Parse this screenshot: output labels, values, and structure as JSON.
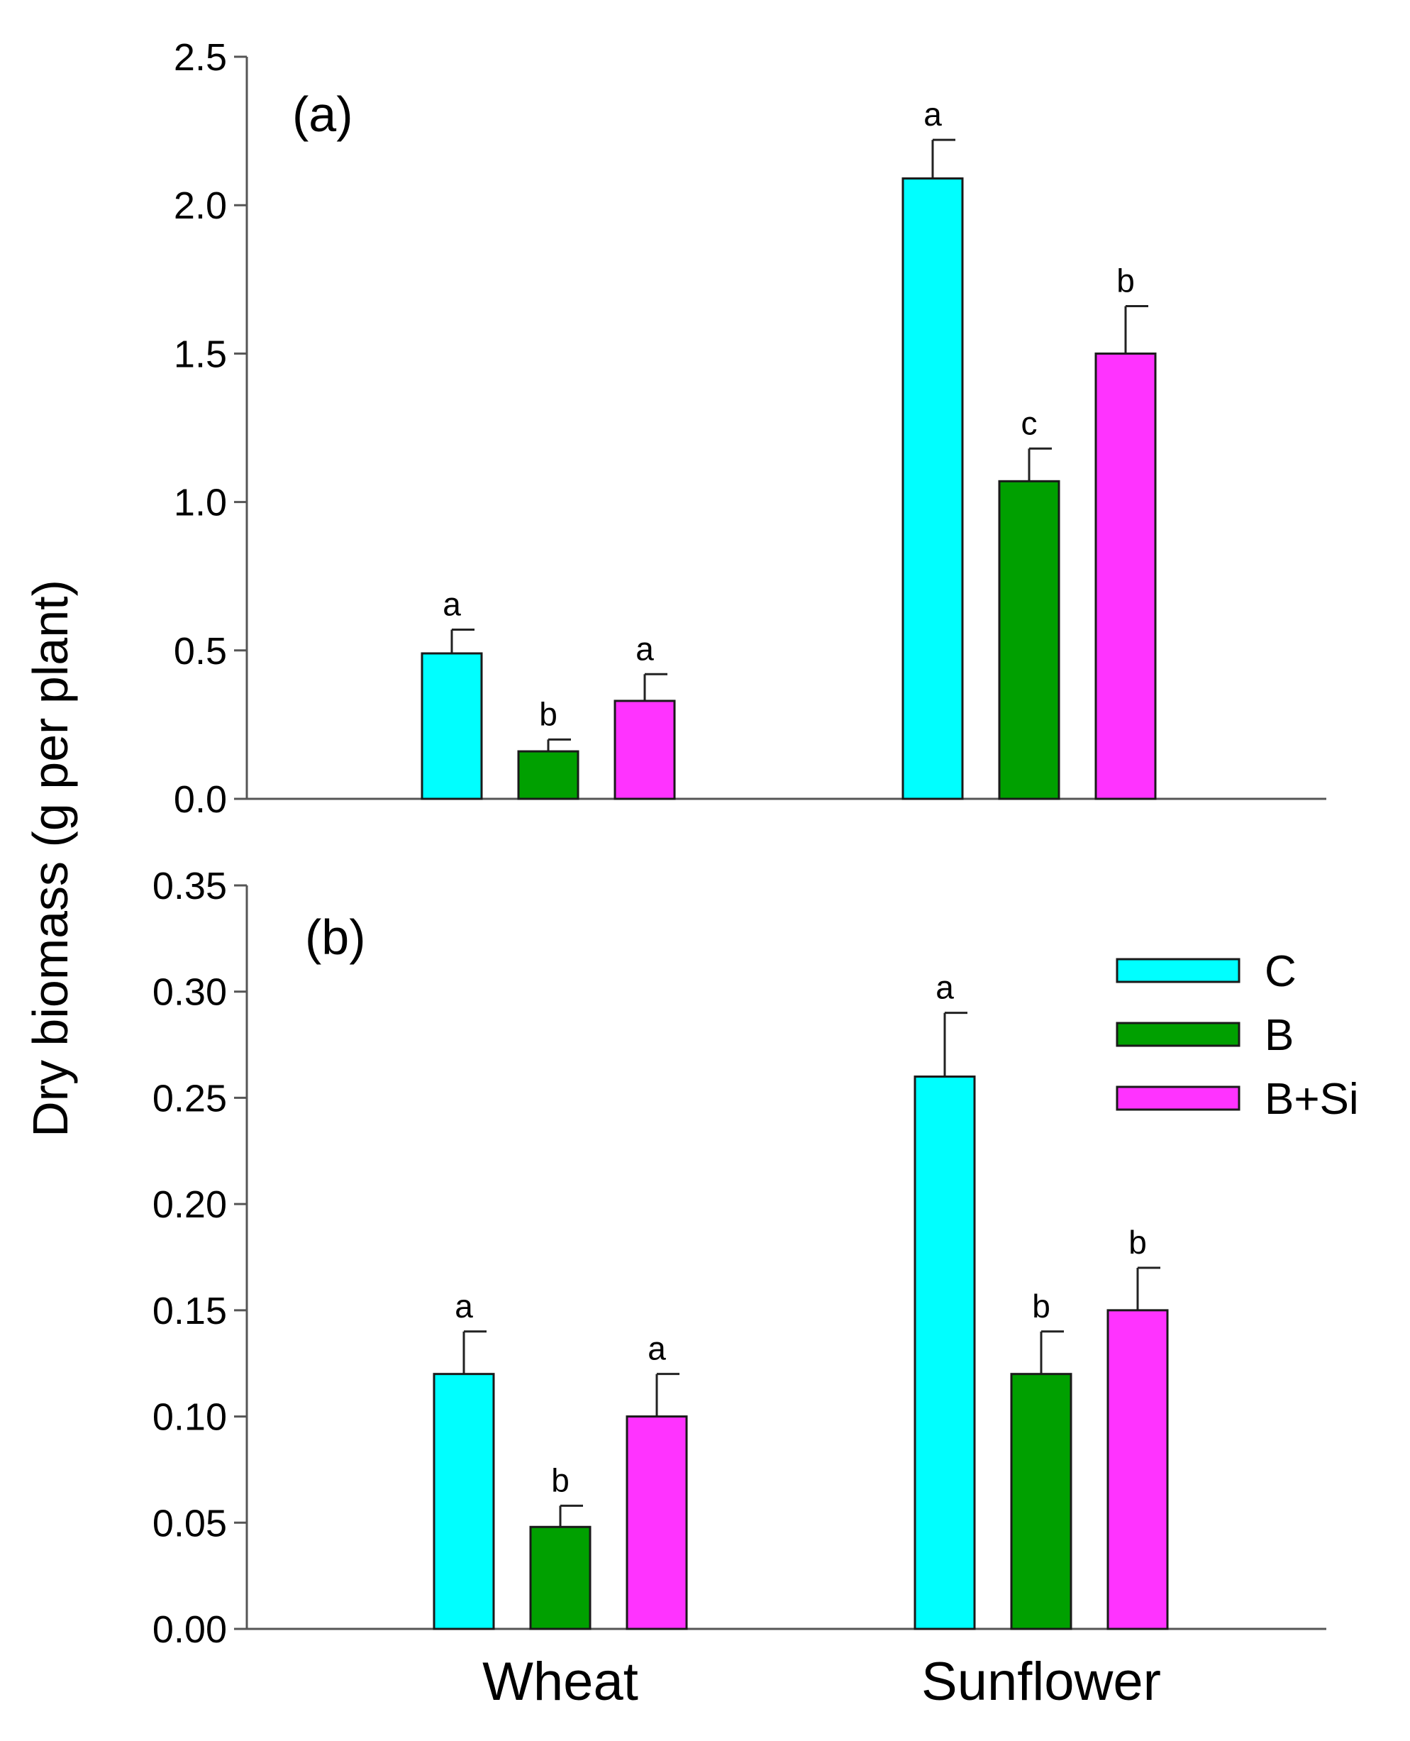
{
  "chart_data": [
    {
      "type": "bar",
      "panel_label": "(a)",
      "categories": [
        "Wheat",
        "Sunflower"
      ],
      "series": [
        {
          "name": "C",
          "color": "#00ffff",
          "values": [
            0.49,
            2.09
          ],
          "errors": [
            0.08,
            0.13
          ],
          "sig": [
            "a",
            "a"
          ]
        },
        {
          "name": "B",
          "color": "#00a000",
          "values": [
            0.16,
            1.07
          ],
          "errors": [
            0.04,
            0.11
          ],
          "sig": [
            "b",
            "c"
          ]
        },
        {
          "name": "B+Si",
          "color": "#ff33ff",
          "values": [
            0.33,
            1.5
          ],
          "errors": [
            0.09,
            0.16
          ],
          "sig": [
            "a",
            "b"
          ]
        }
      ],
      "ylim": [
        0,
        2.5
      ],
      "yticks": [
        "0.0",
        "0.5",
        "1.0",
        "1.5",
        "2.0",
        "2.5"
      ],
      "xlabel": "",
      "ylabel": "Dry biomass (g per plant)"
    },
    {
      "type": "bar",
      "panel_label": "(b)",
      "categories": [
        "Wheat",
        "Sunflower"
      ],
      "series": [
        {
          "name": "C",
          "color": "#00ffff",
          "values": [
            0.12,
            0.26
          ],
          "errors": [
            0.02,
            0.03
          ],
          "sig": [
            "a",
            "a"
          ]
        },
        {
          "name": "B",
          "color": "#00a000",
          "values": [
            0.048,
            0.12
          ],
          "errors": [
            0.01,
            0.02
          ],
          "sig": [
            "b",
            "b"
          ]
        },
        {
          "name": "B+Si",
          "color": "#ff33ff",
          "values": [
            0.1,
            0.15
          ],
          "errors": [
            0.02,
            0.02
          ],
          "sig": [
            "a",
            "b"
          ]
        }
      ],
      "ylim": [
        0,
        0.35
      ],
      "yticks": [
        "0.00",
        "0.05",
        "0.10",
        "0.15",
        "0.20",
        "0.25",
        "0.30",
        "0.35"
      ],
      "xlabel": "",
      "ylabel": "Dry biomass (g per plant)",
      "legend": {
        "position": "top-right",
        "entries": [
          "C",
          "B",
          "B+Si"
        ]
      }
    }
  ]
}
